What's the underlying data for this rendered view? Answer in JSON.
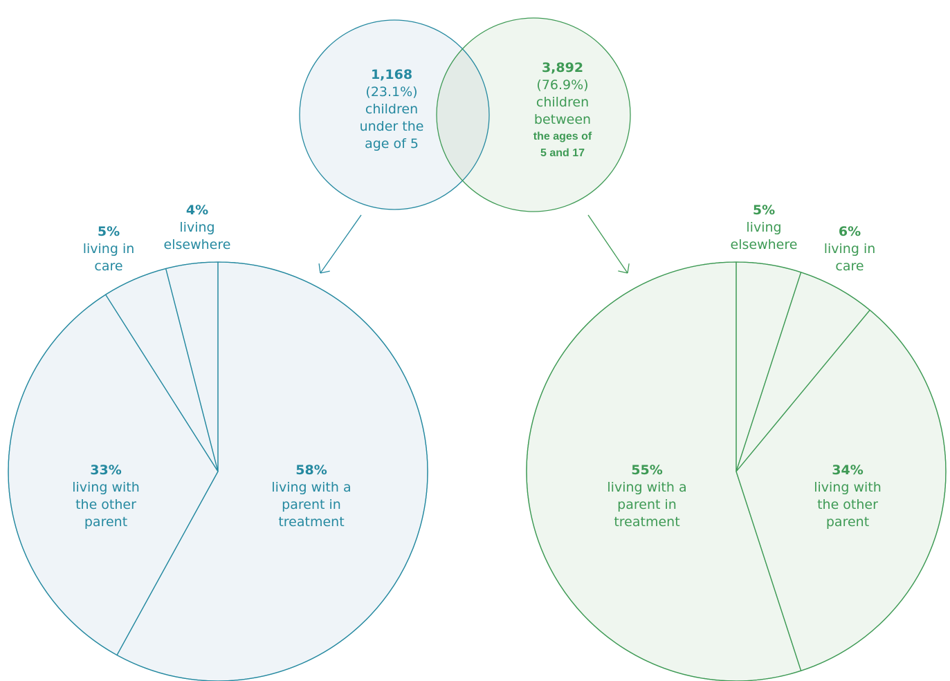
{
  "colors": {
    "blue": "#2589a0",
    "blue_fill": "#eff4f8",
    "green": "#3e9a55",
    "green_fill": "#eff6ef",
    "overlap_fill": "#e3ebe7"
  },
  "venn": {
    "left": {
      "value": "1,168",
      "percent": "(23.1%)",
      "text": [
        "children",
        "under the",
        "age of 5"
      ]
    },
    "right": {
      "value": "3,892",
      "percent": "(76.9%)",
      "text": [
        "children",
        "between"
      ],
      "small_text": [
        "the ages of",
        "5 and 17"
      ]
    }
  },
  "chart_data": [
    {
      "type": "pie",
      "group": "children under the age of 5",
      "slices": [
        {
          "value": 58,
          "pct": "58%",
          "text": [
            "living with a",
            "parent in",
            "treatment"
          ]
        },
        {
          "value": 33,
          "pct": "33%",
          "text": [
            "living with",
            "the other",
            "parent"
          ]
        },
        {
          "value": 5,
          "pct": "5%",
          "text": [
            "living in",
            "care"
          ]
        },
        {
          "value": 4,
          "pct": "4%",
          "text": [
            "living",
            "elsewhere"
          ]
        }
      ]
    },
    {
      "type": "pie",
      "group": "children between the ages of 5 and 17",
      "slices": [
        {
          "value": 5,
          "pct": "5%",
          "text": [
            "living",
            "elsewhere"
          ]
        },
        {
          "value": 6,
          "pct": "6%",
          "text": [
            "living in",
            "care"
          ]
        },
        {
          "value": 34,
          "pct": "34%",
          "text": [
            "living with",
            "the other",
            "parent"
          ]
        },
        {
          "value": 55,
          "pct": "55%",
          "text": [
            "living with a",
            "parent in",
            "treatment"
          ]
        }
      ]
    }
  ]
}
